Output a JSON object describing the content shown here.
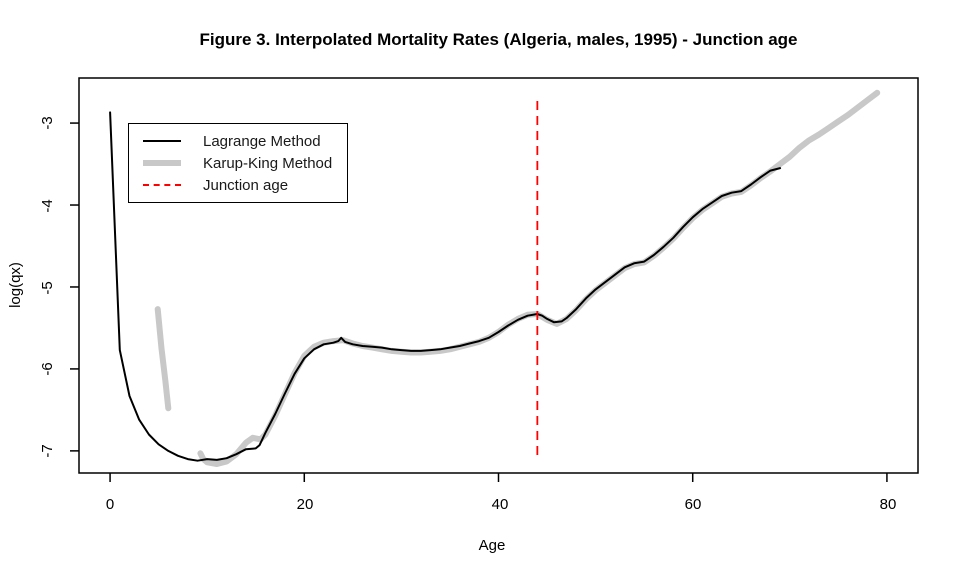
{
  "figure": {
    "title": "Figure 3. Interpolated Mortality Rates (Algeria, males, 1995) - Junction age"
  },
  "chart_data": {
    "type": "line",
    "title": "Figure 3. Interpolated Mortality Rates (Algeria, males, 1995) - Junction age",
    "xlabel": "Age",
    "ylabel": "log(qx)",
    "xlim": [
      -3.2,
      83.2
    ],
    "ylim": [
      -7.27,
      -2.45
    ],
    "grid": false,
    "x_ticks": [
      0,
      20,
      40,
      60,
      80
    ],
    "x_tick_labels": [
      "0",
      "20",
      "40",
      "60",
      "80"
    ],
    "y_ticks": [
      -3,
      -4,
      -5,
      -6,
      -7
    ],
    "y_tick_labels": [
      "-3",
      "-4",
      "-5",
      "-6",
      "-7"
    ],
    "junction": {
      "age": 44,
      "y_from": -7.05,
      "y_to": -2.66,
      "color": "#ff0000",
      "style": "dashed"
    },
    "legend": {
      "position": "top-left",
      "entries": [
        {
          "label": "Lagrange Method",
          "color": "#000000",
          "style": "solid",
          "width": 2
        },
        {
          "label": "Karup-King Method",
          "color": "#c8c8c8",
          "style": "solid",
          "width": 6
        },
        {
          "label": "Junction age",
          "color": "#ff0000",
          "style": "dashed",
          "width": 2
        }
      ]
    },
    "series": [
      {
        "name": "Karup-King Method",
        "color": "#c8c8c8",
        "width": 6,
        "segments": [
          [
            [
              4.9,
              -5.27
            ],
            [
              5.3,
              -5.75
            ],
            [
              5.7,
              -6.15
            ],
            [
              6.0,
              -6.48
            ]
          ],
          [
            [
              9.3,
              -7.03
            ],
            [
              9.6,
              -7.1
            ],
            [
              10,
              -7.14
            ],
            [
              11,
              -7.16
            ],
            [
              12,
              -7.13
            ],
            [
              13,
              -7.04
            ],
            [
              14,
              -6.9
            ],
            [
              14.7,
              -6.84
            ],
            [
              15.5,
              -6.86
            ],
            [
              16,
              -6.8
            ],
            [
              17,
              -6.57
            ],
            [
              18,
              -6.31
            ],
            [
              19,
              -6.05
            ],
            [
              20,
              -5.84
            ],
            [
              21,
              -5.73
            ],
            [
              22,
              -5.68
            ],
            [
              23,
              -5.66
            ],
            [
              24,
              -5.65
            ],
            [
              25,
              -5.69
            ],
            [
              26,
              -5.72
            ],
            [
              27,
              -5.74
            ],
            [
              28,
              -5.76
            ],
            [
              29,
              -5.78
            ],
            [
              30,
              -5.79
            ],
            [
              31,
              -5.8
            ],
            [
              32,
              -5.8
            ],
            [
              33,
              -5.79
            ],
            [
              34,
              -5.78
            ],
            [
              35,
              -5.76
            ],
            [
              36,
              -5.73
            ],
            [
              37,
              -5.7
            ],
            [
              38,
              -5.67
            ],
            [
              39,
              -5.62
            ],
            [
              40,
              -5.55
            ],
            [
              41,
              -5.46
            ],
            [
              42,
              -5.39
            ],
            [
              43,
              -5.34
            ],
            [
              44,
              -5.33
            ],
            [
              45,
              -5.4
            ],
            [
              46,
              -5.45
            ],
            [
              47,
              -5.39
            ],
            [
              48,
              -5.28
            ],
            [
              49,
              -5.15
            ],
            [
              50,
              -5.04
            ],
            [
              51,
              -4.95
            ],
            [
              52,
              -4.86
            ],
            [
              53,
              -4.77
            ],
            [
              54,
              -4.72
            ],
            [
              55,
              -4.7
            ],
            [
              56,
              -4.62
            ],
            [
              57,
              -4.52
            ],
            [
              58,
              -4.41
            ],
            [
              59,
              -4.28
            ],
            [
              60,
              -4.16
            ],
            [
              61,
              -4.06
            ],
            [
              62,
              -3.98
            ],
            [
              63,
              -3.9
            ],
            [
              64,
              -3.86
            ],
            [
              65,
              -3.84
            ],
            [
              66,
              -3.76
            ],
            [
              67,
              -3.67
            ],
            [
              68,
              -3.59
            ],
            [
              69,
              -3.5
            ],
            [
              70,
              -3.41
            ],
            [
              71,
              -3.3
            ],
            [
              72,
              -3.21
            ],
            [
              73,
              -3.14
            ],
            [
              74,
              -3.06
            ],
            [
              75,
              -2.98
            ],
            [
              76,
              -2.9
            ],
            [
              77,
              -2.81
            ],
            [
              78,
              -2.72
            ],
            [
              79,
              -2.63
            ]
          ]
        ]
      },
      {
        "name": "Lagrange Method",
        "color": "#000000",
        "width": 2,
        "segments": [
          [
            [
              0,
              -2.87
            ],
            [
              1,
              -5.77
            ],
            [
              2,
              -6.33
            ],
            [
              3,
              -6.62
            ],
            [
              4,
              -6.8
            ],
            [
              5,
              -6.92
            ],
            [
              6,
              -7.0
            ],
            [
              7,
              -7.06
            ],
            [
              8,
              -7.1
            ],
            [
              9,
              -7.12
            ],
            [
              10,
              -7.1
            ],
            [
              11,
              -7.11
            ],
            [
              12,
              -7.09
            ],
            [
              13,
              -7.04
            ],
            [
              14,
              -6.98
            ],
            [
              15,
              -6.97
            ],
            [
              15.4,
              -6.93
            ],
            [
              16,
              -6.78
            ],
            [
              17,
              -6.55
            ],
            [
              18,
              -6.3
            ],
            [
              19,
              -6.06
            ],
            [
              20,
              -5.87
            ],
            [
              21,
              -5.76
            ],
            [
              22,
              -5.7
            ],
            [
              23,
              -5.68
            ],
            [
              23.5,
              -5.66
            ],
            [
              23.8,
              -5.62
            ],
            [
              24.2,
              -5.67
            ],
            [
              25,
              -5.7
            ],
            [
              26,
              -5.72
            ],
            [
              27,
              -5.73
            ],
            [
              28,
              -5.74
            ],
            [
              29,
              -5.76
            ],
            [
              30,
              -5.77
            ],
            [
              31,
              -5.78
            ],
            [
              32,
              -5.78
            ],
            [
              33,
              -5.77
            ],
            [
              34,
              -5.76
            ],
            [
              35,
              -5.74
            ],
            [
              36,
              -5.72
            ],
            [
              37,
              -5.69
            ],
            [
              38,
              -5.66
            ],
            [
              39,
              -5.62
            ],
            [
              40,
              -5.55
            ],
            [
              41,
              -5.47
            ],
            [
              42,
              -5.4
            ],
            [
              43,
              -5.35
            ],
            [
              44,
              -5.33
            ],
            [
              44.5,
              -5.35
            ],
            [
              45,
              -5.39
            ],
            [
              45.7,
              -5.43
            ],
            [
              46.5,
              -5.42
            ],
            [
              47,
              -5.38
            ],
            [
              48,
              -5.27
            ],
            [
              49,
              -5.14
            ],
            [
              50,
              -5.03
            ],
            [
              51,
              -4.94
            ],
            [
              52,
              -4.85
            ],
            [
              53,
              -4.76
            ],
            [
              54,
              -4.71
            ],
            [
              55,
              -4.69
            ],
            [
              56,
              -4.61
            ],
            [
              57,
              -4.51
            ],
            [
              58,
              -4.4
            ],
            [
              59,
              -4.27
            ],
            [
              60,
              -4.15
            ],
            [
              61,
              -4.05
            ],
            [
              62,
              -3.97
            ],
            [
              63,
              -3.89
            ],
            [
              64,
              -3.85
            ],
            [
              65,
              -3.83
            ],
            [
              66,
              -3.75
            ],
            [
              67,
              -3.66
            ],
            [
              68,
              -3.58
            ],
            [
              69,
              -3.55
            ]
          ]
        ]
      }
    ]
  }
}
